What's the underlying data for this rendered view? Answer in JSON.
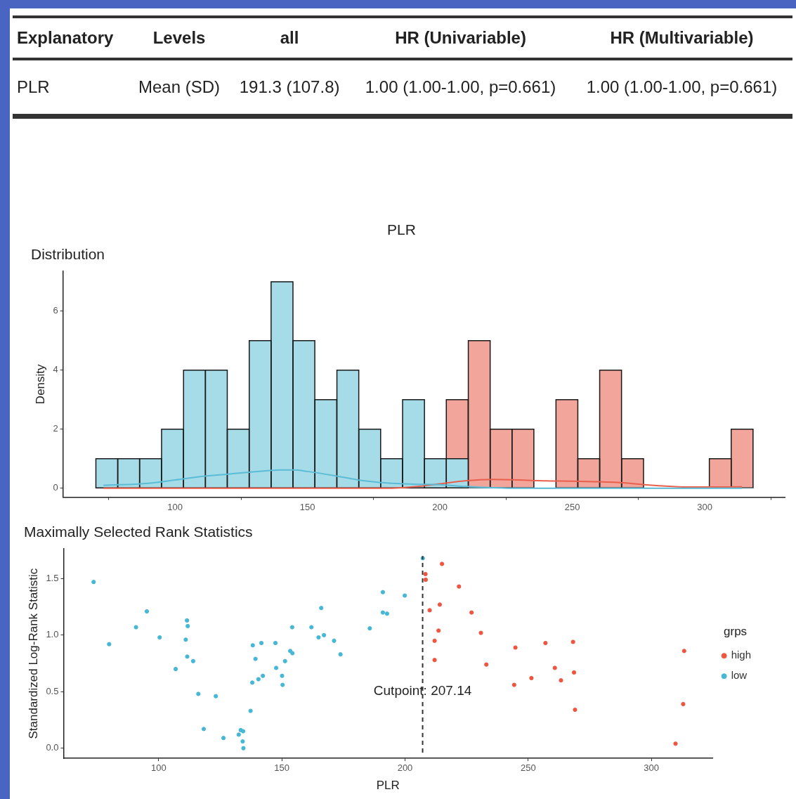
{
  "chart_data": [
    {
      "type": "other",
      "annotations": [
        "Explanatory",
        "Levels",
        "all",
        "HR (Univariable)",
        "HR (Multivariable)",
        "PLR",
        "Mean (SD)",
        "191.3 (107.8)",
        "1.00 (1.00-1.00, p=0.661)",
        "1.00 (1.00-1.00, p=0.661)"
      ]
    },
    {
      "type": "histogram",
      "title": "PLR",
      "subtitle": "Distribution",
      "ylabel": "Density",
      "grid": false,
      "bins": [
        70.1,
        78.4,
        86.6,
        94.9,
        103.2,
        111.5,
        119.7,
        128.0,
        136.3,
        144.5,
        152.8,
        161.1,
        169.4,
        177.6,
        185.9,
        194.2,
        202.4,
        210.7,
        219.0,
        227.2,
        235.5,
        243.8,
        252.1,
        260.3,
        268.6,
        276.9,
        285.1,
        293.4,
        301.7,
        310.0,
        318.2
      ],
      "xlim": [
        57.7,
        330.2
      ],
      "xticks": [
        100,
        150,
        200,
        250,
        300
      ],
      "ylim": [
        -0.3,
        7.35
      ],
      "yticks": [
        0,
        2,
        4,
        6
      ],
      "series": [
        {
          "color": "#a6dbe8",
          "values": [
            1,
            1,
            1,
            2,
            4,
            4,
            2,
            5,
            7,
            5,
            3,
            4,
            2,
            1,
            3,
            1,
            1,
            0,
            0,
            0,
            0,
            0,
            0,
            0,
            0,
            0,
            0,
            0,
            0,
            0
          ]
        },
        {
          "color": "#f2a59b",
          "values": [
            0,
            0,
            0,
            0,
            0,
            0,
            0,
            0,
            0,
            0,
            0,
            0,
            0,
            0,
            0,
            0,
            3,
            5,
            2,
            2,
            0,
            3,
            1,
            4,
            1,
            0,
            0,
            0,
            1,
            2
          ]
        },
        {
          "type": "line",
          "color": "#5bbcd6",
          "x": [
            73,
            90,
            100,
            110,
            120,
            130,
            140,
            145,
            150,
            160,
            170,
            180,
            190,
            200,
            210,
            220,
            230,
            260,
            314
          ],
          "values": [
            0.1,
            0.17,
            0.28,
            0.4,
            0.48,
            0.56,
            0.62,
            0.62,
            0.57,
            0.43,
            0.27,
            0.18,
            0.14,
            0.12,
            0.06,
            0.02,
            0,
            0,
            0
          ]
        },
        {
          "type": "line",
          "color": "#e8604c",
          "x": [
            73,
            180,
            190,
            200,
            210,
            220,
            230,
            240,
            250,
            260,
            270,
            280,
            290,
            300,
            314
          ],
          "values": [
            0,
            0,
            0.05,
            0.15,
            0.26,
            0.3,
            0.28,
            0.25,
            0.24,
            0.22,
            0.18,
            0.1,
            0.05,
            0.04,
            0.05
          ]
        }
      ]
    },
    {
      "type": "scatter",
      "title": "Maximally Selected Rank Statistics",
      "xlabel": "PLR",
      "ylabel": "Standardized Log-Rank Statistic",
      "legend_title": "grps",
      "legend": "right",
      "grid": false,
      "marker": "circle",
      "xlim": [
        61.4,
        324.8
      ],
      "xticks": [
        100,
        150,
        200,
        250,
        300
      ],
      "ylim": [
        -0.089,
        1.762
      ],
      "yticks": [
        {
          "value": 0,
          "label": "0.0"
        },
        {
          "value": 0.5,
          "label": "0.5"
        },
        {
          "value": 1,
          "label": "1.0"
        },
        {
          "value": 1.5,
          "label": "1.5"
        }
      ],
      "ref_lines": [
        {
          "axis": "x",
          "value": 207.14,
          "color": "#333333",
          "line_style": "dashed"
        }
      ],
      "annotations": [
        {
          "text": "Cutpoint: 207.14",
          "x": 207.14,
          "y": 0.5
        }
      ],
      "series": [
        {
          "name": "high",
          "color": "#f0553f",
          "x": [
            215.0,
            208.3,
            208.4,
            221.9,
            214.1,
            210.0,
            227.0,
            213.6,
            230.8,
            212.0,
            244.8,
            257.0,
            268.2,
            313.3,
            212.0,
            233.0,
            260.8,
            268.6,
            251.3,
            263.3,
            244.3,
            312.9,
            269.0,
            309.8
          ],
          "values": [
            1.63,
            1.54,
            1.49,
            1.43,
            1.27,
            1.22,
            1.2,
            1.04,
            1.02,
            0.95,
            0.89,
            0.93,
            0.94,
            0.86,
            0.78,
            0.74,
            0.71,
            0.67,
            0.62,
            0.6,
            0.56,
            0.39,
            0.34,
            0.04
          ]
        },
        {
          "name": "low",
          "color": "#46b8d6",
          "x": [
            73.6,
            79.9,
            90.8,
            95.2,
            100.4,
            106.9,
            111.0,
            111.5,
            111.8,
            111.6,
            114.0,
            116.1,
            118.3,
            123.2,
            126.3,
            132.5,
            133.3,
            134.3,
            134.1,
            134.4,
            137.3,
            138.0,
            138.2,
            139.3,
            140.5,
            141.7,
            142.3,
            147.4,
            147.7,
            150.1,
            150.3,
            151.3,
            153.4,
            154.3,
            154.2,
            162.0,
            164.9,
            166.0,
            167.1,
            171.2,
            173.8,
            185.7,
            191.0,
            191.0,
            192.7,
            199.9,
            207.2
          ],
          "values": [
            1.47,
            0.92,
            1.07,
            1.21,
            0.98,
            0.7,
            0.96,
            1.13,
            1.08,
            0.81,
            0.77,
            0.48,
            0.17,
            0.46,
            0.09,
            0.12,
            0.16,
            0.15,
            0.06,
            0.0,
            0.33,
            0.58,
            0.91,
            0.79,
            0.61,
            0.93,
            0.64,
            0.93,
            0.71,
            0.64,
            0.56,
            0.77,
            0.86,
            0.84,
            1.07,
            1.07,
            0.98,
            1.24,
            1.0,
            0.95,
            0.83,
            1.06,
            1.38,
            1.2,
            1.19,
            1.35,
            1.68
          ]
        }
      ]
    }
  ]
}
